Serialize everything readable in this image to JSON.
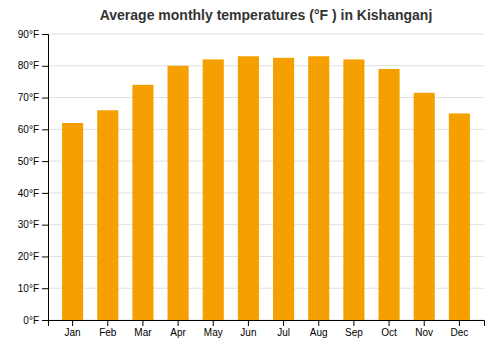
{
  "chart_data": {
    "type": "bar",
    "title": "Average monthly temperatures (°F ) in Kishanganj",
    "categories": [
      "Jan",
      "Feb",
      "Mar",
      "Apr",
      "May",
      "Jun",
      "Jul",
      "Aug",
      "Sep",
      "Oct",
      "Nov",
      "Dec"
    ],
    "values": [
      62,
      66,
      74,
      80,
      82,
      83,
      82.5,
      83,
      82,
      79,
      71.5,
      65
    ],
    "color": "#F5A000",
    "ylim": [
      0,
      90
    ],
    "yticks": [
      {
        "value": 0,
        "label": "0°F"
      },
      {
        "value": 10,
        "label": "10°F"
      },
      {
        "value": 20,
        "label": "20°F"
      },
      {
        "value": 30,
        "label": "30°F"
      },
      {
        "value": 40,
        "label": "40°F"
      },
      {
        "value": 50,
        "label": "50°F"
      },
      {
        "value": 60,
        "label": "60°F"
      },
      {
        "value": 70,
        "label": "70°F"
      },
      {
        "value": 80,
        "label": "80°F"
      },
      {
        "value": 90,
        "label": "90°F"
      }
    ],
    "grid": true
  }
}
